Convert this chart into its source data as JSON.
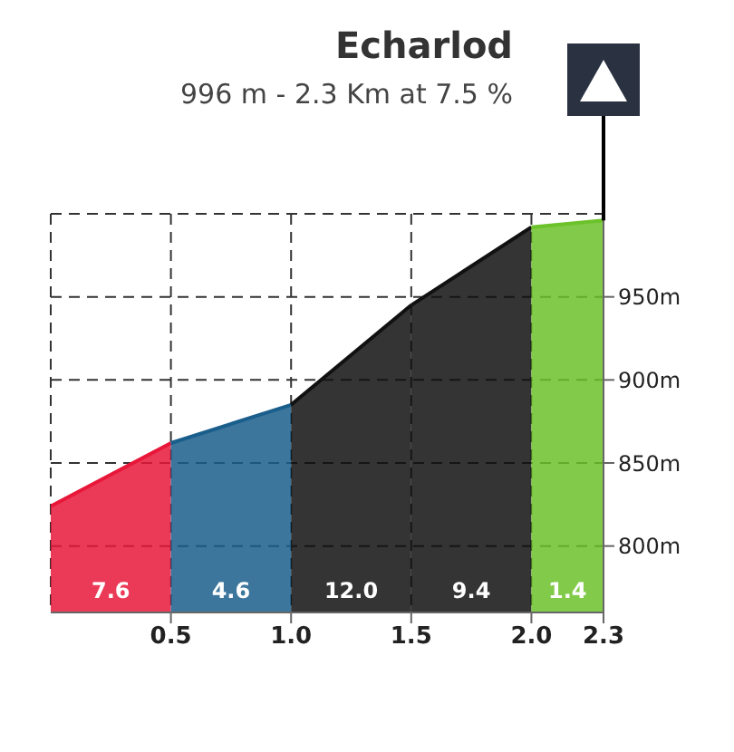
{
  "chart_data": {
    "type": "area",
    "title": "Echarlod",
    "subtitle": "996 m - 2.3 Km at 7.5 %",
    "series": [
      {
        "x": [
          0,
          0.5
        ],
        "values": [
          824,
          862
        ],
        "color": "#e8173a"
      },
      {
        "x": [
          0.5,
          1.0
        ],
        "values": [
          862,
          885
        ],
        "color": "#1a5e8c"
      },
      {
        "x": [
          1.0,
          1.5
        ],
        "values": [
          885,
          945
        ],
        "color": "#111111"
      },
      {
        "x": [
          1.5,
          2.0
        ],
        "values": [
          945,
          992
        ],
        "color": "#111111"
      },
      {
        "x": [
          2.0,
          2.3
        ],
        "values": [
          992,
          996
        ],
        "color": "#6cc22a"
      }
    ],
    "annotations": [
      "7.6",
      "4.6",
      "12.0",
      "9.4",
      "1.4"
    ],
    "xlim": [
      0,
      2.3
    ],
    "xticks": [
      0.5,
      {
        "value": 1,
        "label": "1.0"
      },
      1.5,
      {
        "value": 2,
        "label": "2.0"
      },
      2.3
    ],
    "ylim": [
      760,
      1000
    ],
    "yticks": [
      {
        "value": 800,
        "label": "800m"
      },
      {
        "value": 850,
        "label": "850m"
      },
      {
        "value": 900,
        "label": "900m"
      },
      {
        "value": 950,
        "label": "950m"
      }
    ],
    "grid": true,
    "line_style": "dashed"
  }
}
